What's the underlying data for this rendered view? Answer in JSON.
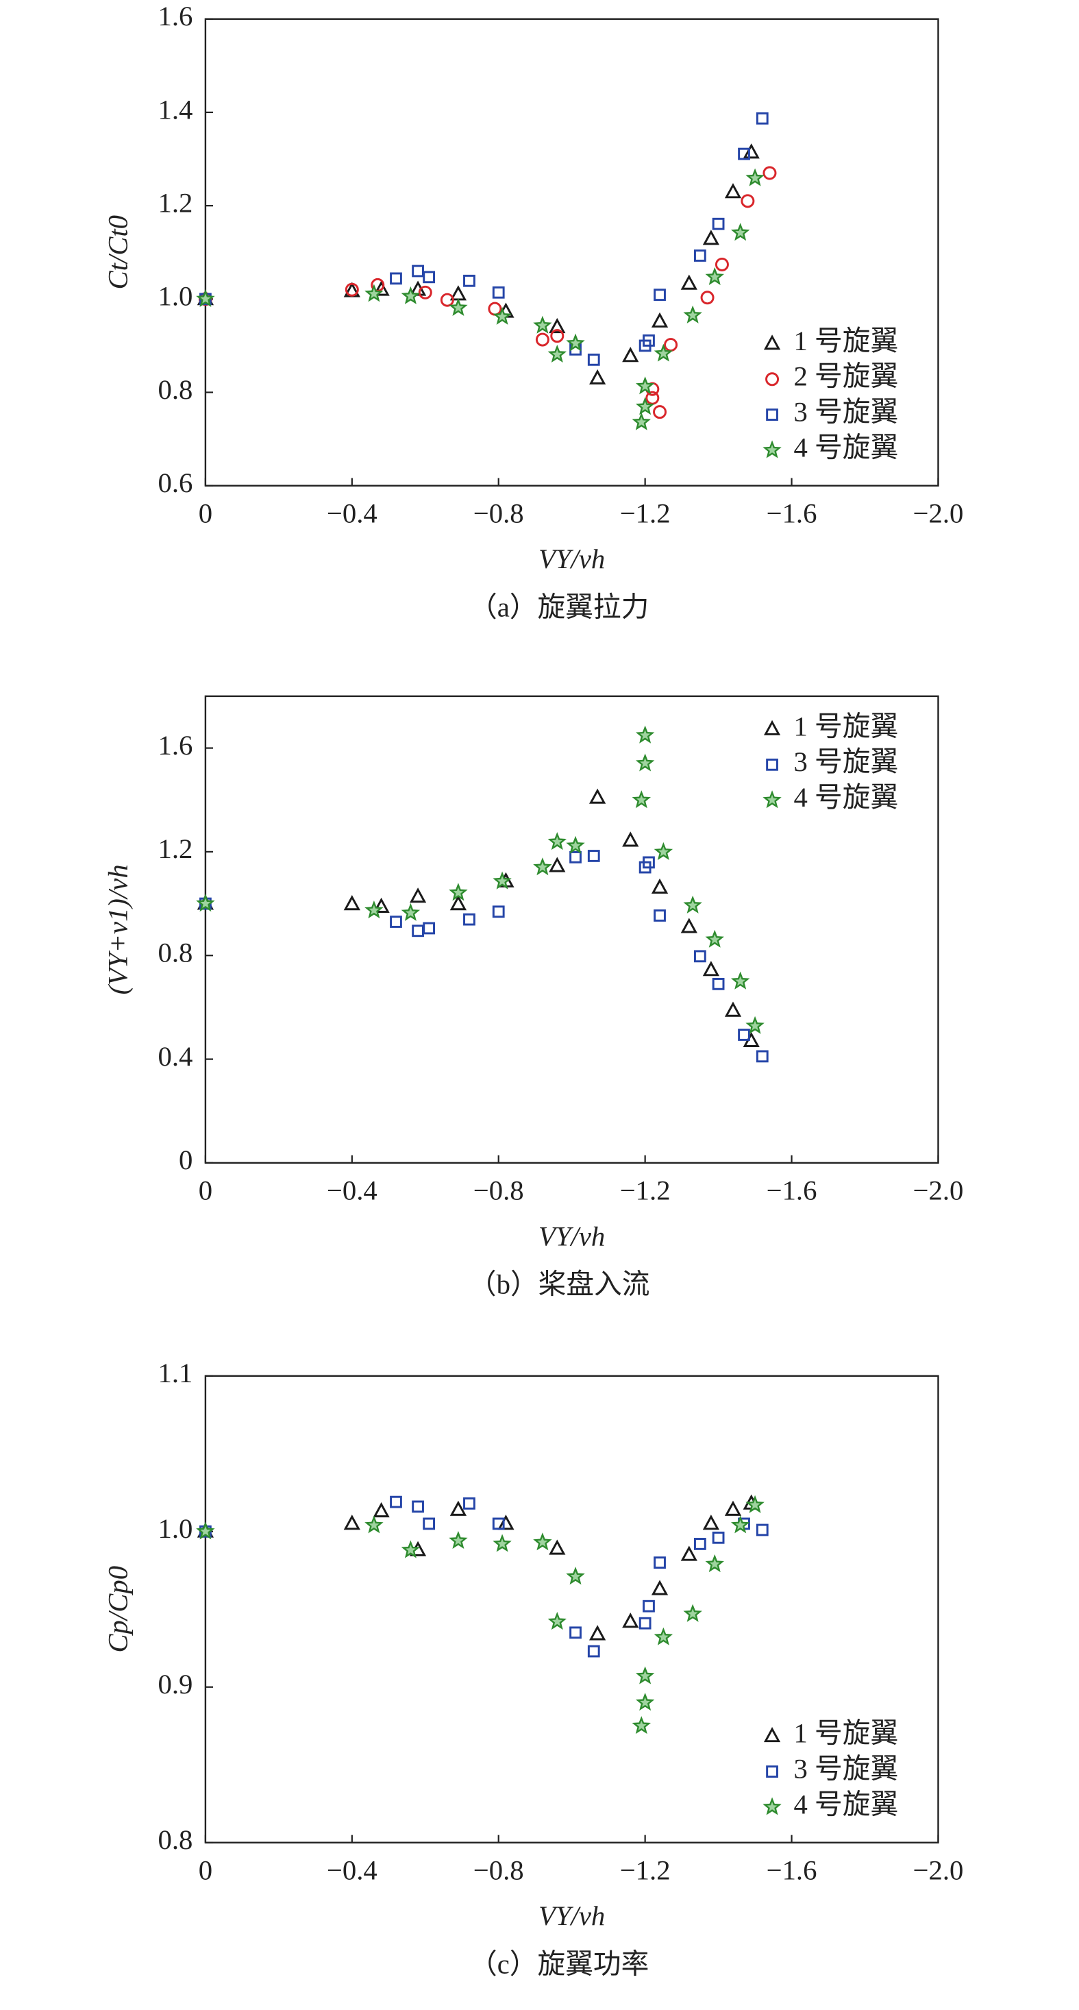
{
  "chart_data": [
    {
      "type": "scatter",
      "x_label": "VY/vh",
      "y_label": "Ct/Ct0",
      "caption": "（a）旋翼拉力",
      "xlim": [
        0,
        -2.0
      ],
      "ylim": [
        0.6,
        1.6
      ],
      "xticks": [
        0,
        {
          "value": -0.4,
          "label": "−0.4"
        },
        {
          "value": -0.8,
          "label": "−0.8"
        },
        {
          "value": -1.2,
          "label": "−1.2"
        },
        {
          "value": -1.6,
          "label": "−1.6"
        },
        {
          "value": -2.0,
          "label": "−2.0"
        }
      ],
      "yticks": [
        0.6,
        0.8,
        {
          "value": 1.0,
          "label": "1.0"
        },
        1.2,
        1.4,
        1.6
      ],
      "legend": "lower right",
      "series": [
        {
          "name": "1 号旋翼",
          "color": "#1a1a1a",
          "marker": "triangle",
          "x": [
            0,
            -0.4,
            -0.48,
            -0.58,
            -0.69,
            -0.82,
            -0.96,
            -1.07,
            -1.16,
            -1.24,
            -1.32,
            -1.38,
            -1.44,
            -1.49
          ],
          "values": [
            1.0,
            1.017,
            1.02,
            1.02,
            1.01,
            0.973,
            0.94,
            0.83,
            0.878,
            0.952,
            1.033,
            1.129,
            1.229,
            1.314
          ]
        },
        {
          "name": "2 号旋翼",
          "color": "#d9262b",
          "marker": "circle",
          "x": [
            0,
            -0.4,
            -0.47,
            -0.6,
            -0.66,
            -0.79,
            -0.92,
            -0.96,
            -1.27,
            -1.22,
            -1.22,
            -1.24,
            -1.37,
            -1.41,
            -1.48,
            -1.54
          ],
          "values": [
            1.0,
            1.02,
            1.03,
            1.014,
            0.998,
            0.979,
            0.913,
            0.921,
            0.902,
            0.807,
            0.788,
            0.758,
            1.003,
            1.074,
            1.21,
            1.27
          ]
        },
        {
          "name": "3 号旋翼",
          "color": "#2545a8",
          "marker": "square",
          "x": [
            0,
            -0.52,
            -0.58,
            -0.61,
            -0.72,
            -0.8,
            -1.01,
            -1.06,
            -1.2,
            -1.21,
            -1.24,
            -1.35,
            -1.4,
            -1.47,
            -1.52
          ],
          "values": [
            1.0,
            1.044,
            1.06,
            1.047,
            1.039,
            1.014,
            0.892,
            0.87,
            0.9,
            0.911,
            1.009,
            1.093,
            1.161,
            1.311,
            1.387
          ]
        },
        {
          "name": "4 号旋翼",
          "color": "#2e8b2e",
          "marker": "star",
          "x": [
            0,
            -0.46,
            -0.56,
            -0.69,
            -0.81,
            -0.92,
            -0.96,
            -1.01,
            -1.2,
            -1.2,
            -1.19,
            -1.25,
            -1.33,
            -1.39,
            -1.46,
            -1.5
          ],
          "values": [
            1.0,
            1.011,
            1.006,
            0.981,
            0.962,
            0.943,
            0.881,
            0.905,
            0.813,
            0.769,
            0.736,
            0.883,
            0.965,
            1.047,
            1.142,
            1.259
          ]
        }
      ]
    },
    {
      "type": "scatter",
      "x_label": "VY/vh",
      "y_label": "(VY+v1)/vh",
      "caption": "（b）桨盘入流",
      "xlim": [
        0,
        -2.0
      ],
      "ylim": [
        0,
        1.8
      ],
      "xticks": [
        0,
        {
          "value": -0.4,
          "label": "−0.4"
        },
        {
          "value": -0.8,
          "label": "−0.8"
        },
        {
          "value": -1.2,
          "label": "−1.2"
        },
        {
          "value": -1.6,
          "label": "−1.6"
        },
        {
          "value": -2.0,
          "label": "−2.0"
        }
      ],
      "yticks": [
        0,
        0.4,
        0.8,
        1.2,
        1.6
      ],
      "legend": "upper right",
      "series": [
        {
          "name": "1 号旋翼",
          "color": "#1a1a1a",
          "marker": "triangle",
          "x": [
            0,
            -0.4,
            -0.48,
            -0.58,
            -0.69,
            -0.82,
            -0.96,
            -1.07,
            -1.16,
            -1.24,
            -1.32,
            -1.38,
            -1.44,
            -1.49
          ],
          "values": [
            1.0,
            0.998,
            0.988,
            1.027,
            0.998,
            1.086,
            1.145,
            1.409,
            1.243,
            1.062,
            0.91,
            0.744,
            0.587,
            0.47
          ]
        },
        {
          "name": "3 号旋翼",
          "color": "#2545a8",
          "marker": "square",
          "x": [
            0,
            -0.52,
            -0.58,
            -0.61,
            -0.72,
            -0.8,
            -1.01,
            -1.06,
            -1.2,
            -1.21,
            -1.24,
            -1.35,
            -1.4,
            -1.47,
            -1.52
          ],
          "values": [
            1.0,
            0.93,
            0.895,
            0.905,
            0.939,
            0.969,
            1.179,
            1.184,
            1.14,
            1.159,
            0.954,
            0.797,
            0.69,
            0.494,
            0.411
          ]
        },
        {
          "name": "4 号旋翼",
          "color": "#2e8b2e",
          "marker": "star",
          "x": [
            0,
            -0.46,
            -0.56,
            -0.69,
            -0.81,
            -0.92,
            -0.96,
            -1.01,
            -1.2,
            -1.2,
            -1.19,
            -1.25,
            -1.33,
            -1.39,
            -1.46,
            -1.5
          ],
          "values": [
            1.0,
            0.974,
            0.964,
            1.042,
            1.086,
            1.14,
            1.238,
            1.223,
            1.649,
            1.541,
            1.399,
            1.199,
            0.993,
            0.861,
            0.7,
            0.528
          ]
        }
      ]
    },
    {
      "type": "scatter",
      "x_label": "VY/vh",
      "y_label": "Cp/Cp0",
      "caption": "（c）旋翼功率",
      "xlim": [
        0,
        -2.0
      ],
      "ylim": [
        0.8,
        1.1
      ],
      "xticks": [
        0,
        {
          "value": -0.4,
          "label": "−0.4"
        },
        {
          "value": -0.8,
          "label": "−0.8"
        },
        {
          "value": -1.2,
          "label": "−1.2"
        },
        {
          "value": -1.6,
          "label": "−1.6"
        },
        {
          "value": -2.0,
          "label": "−2.0"
        }
      ],
      "yticks": [
        0.8,
        0.9,
        {
          "value": 1.0,
          "label": "1.0"
        },
        1.1
      ],
      "legend": "lower right",
      "series": [
        {
          "name": "1 号旋翼",
          "color": "#1a1a1a",
          "marker": "triangle",
          "x": [
            0,
            -0.4,
            -0.48,
            -0.58,
            -0.69,
            -0.82,
            -0.96,
            -1.07,
            -1.16,
            -1.24,
            -1.32,
            -1.38,
            -1.44,
            -1.49
          ],
          "values": [
            1.0,
            1.005,
            1.013,
            0.988,
            1.014,
            1.005,
            0.989,
            0.934,
            0.942,
            0.963,
            0.985,
            1.005,
            1.014,
            1.018
          ]
        },
        {
          "name": "3 号旋翼",
          "color": "#2545a8",
          "marker": "square",
          "x": [
            0,
            -0.52,
            -0.58,
            -0.61,
            -0.72,
            -0.8,
            -1.01,
            -1.06,
            -1.2,
            -1.21,
            -1.24,
            -1.35,
            -1.4,
            -1.47,
            -1.52
          ],
          "values": [
            1.0,
            1.019,
            1.016,
            1.005,
            1.018,
            1.005,
            0.935,
            0.923,
            0.941,
            0.952,
            0.98,
            0.992,
            0.996,
            1.005,
            1.001
          ]
        },
        {
          "name": "4 号旋翼",
          "color": "#2e8b2e",
          "marker": "star",
          "x": [
            0,
            -0.46,
            -0.56,
            -0.69,
            -0.81,
            -0.92,
            -1.01,
            -0.96,
            -1.2,
            -1.2,
            -1.19,
            -1.25,
            -1.33,
            -1.39,
            -1.46,
            -1.5
          ],
          "values": [
            1.0,
            1.004,
            0.988,
            0.994,
            0.992,
            0.993,
            0.971,
            0.942,
            0.907,
            0.89,
            0.875,
            0.932,
            0.947,
            0.979,
            1.004,
            1.017
          ]
        }
      ]
    }
  ]
}
